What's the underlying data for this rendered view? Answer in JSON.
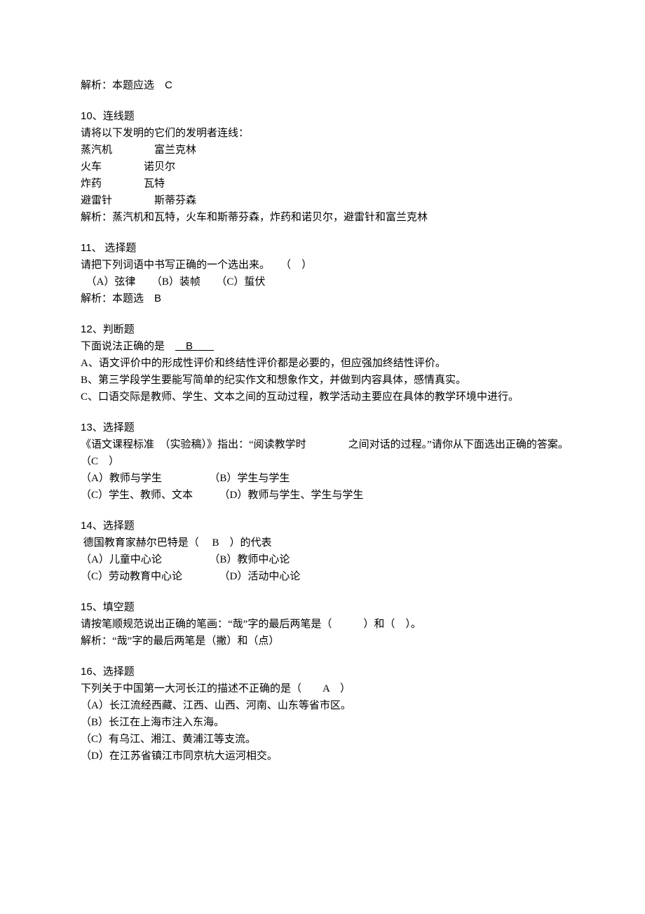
{
  "q9_analysis_prefix": "解析：本题应选 ",
  "q9_analysis_answer": "C",
  "q10_num": "10",
  "q10_type": "、连线题",
  "q10_prompt": "请将以下发明的它们的发明者连线：",
  "q10_pairs": [
    "蒸汽机　　　　富兰克林",
    "火车　　　　诺贝尔",
    "炸药　　　　瓦特",
    "避雷针　　　　斯蒂芬森"
  ],
  "q10_analysis": "解析：蒸汽机和瓦特，火车和斯蒂芬森，炸药和诺贝尔，避雷针和富兰克林",
  "q11_num": "11",
  "q11_type": "、 选择题",
  "q11_prompt": "请把下列词语中书写正确的一个选出来。　　（　）",
  "q11_options": "　（A）弦律　　（B）装帧　　（C）蜇伏",
  "q11_analysis_prefix": "解析：本题选　",
  "q11_analysis_answer": "B",
  "q12_num": "12",
  "q12_type": "、判断题",
  "q12_prompt_prefix": "下面说法正确的是 ",
  "q12_answer": "　B　　",
  "q12_opts": [
    "A、语文评价中的形成性评价和终结性评价都是必要的，但应强加终结性评价。",
    "B、第三学段学生要能写简单的纪实作文和想象作文，并做到内容具体，感情真实。",
    "C、口语交际是教师、学生、文本之间的互动过程，教学活动主要应在具体的教学环境中进行。"
  ],
  "q13_num": "13",
  "q13_type": "、选择题",
  "q13_prompt": "《语文课程标准　（实验稿）》指出：“阅读教学时　　　　之间对话的过程。”请你从下面选出正确的答案。　（C　）",
  "q13_row1": "（A）教师与学生　　　　　（B）学生与学生",
  "q13_row2": "（C）学生、教师、文本　　　（D）教师与学生、学生与学生",
  "q14_num": "14",
  "q14_type": "、选择题",
  "q14_prompt": " 德国教育家赫尔巴特是（　 B　）的代表",
  "q14_row1": "（A）儿童中心论　　　　　（B）教师中心论",
  "q14_row2": "（C）劳动教育中心论　　　　（D）活动中心论",
  "q15_num": "15",
  "q15_type": "、填空题",
  "q15_prompt": "请按笔顺规范说出正确的笔画：“哉”字的最后两笔是（　　　）和（　）。",
  "q15_analysis": "解析：“哉”字的最后两笔是（撇）和（点）",
  "q16_num": "16",
  "q16_type": "、选择题",
  "q16_prompt": "下列关于中国第一大河长江的描述不正确的是（　　A　）",
  "q16_opts": [
    "（A）长江流经西藏、江西、山西、河南、山东等省市区。",
    "（B）长江在上海市注入东海。",
    "（C）有乌江、湘江、黄浦江等支流。",
    "（D）在江苏省镇江市同京杭大运河相交。"
  ]
}
